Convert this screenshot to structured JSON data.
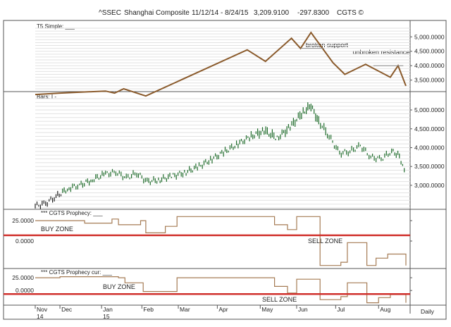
{
  "header": {
    "symbol": "^SSEC",
    "name": "Shanghai Composite",
    "range": "11/12/14 - 8/24/15",
    "last": "3,209.9100",
    "change": "-297.8300",
    "brand": "CGTS ©"
  },
  "colors": {
    "price_line": "#8a5a2b",
    "bars": "#1e6b2a",
    "prophecy": "#a57b54",
    "zone_line": "#d0312d"
  },
  "chart_data": [
    {
      "type": "line",
      "panel_label": "T5 Simple: ___",
      "x": [
        "11/12/14",
        "12/1/14",
        "1/5/15",
        "1/12/15",
        "1/19/15",
        "2/5/15",
        "4/24/15",
        "5/8/15",
        "5/28/15",
        "6/4/15",
        "6/12/15",
        "6/29/15",
        "7/8/15",
        "7/24/15",
        "8/12/15",
        "8/18/15",
        "8/24/15"
      ],
      "y": [
        3000,
        3050,
        3120,
        3050,
        3200,
        2950,
        4550,
        4150,
        4950,
        4600,
        5150,
        4100,
        3700,
        4050,
        3600,
        4000,
        3300
      ],
      "yticks": [
        "3,500.0000",
        "4,000.0000",
        "4,500.0000",
        "5,000.0000"
      ],
      "ylim": [
        3150,
        5300
      ],
      "annotations": [
        {
          "text": "broken support",
          "x": "6/8/15",
          "y": 4640
        },
        {
          "text": "unbroken resistance",
          "x": "7/14/15",
          "y": 4390
        }
      ]
    },
    {
      "type": "bar",
      "panel_label": "Bars: I -",
      "x": [
        "11/12/14",
        "11/20/14",
        "11/28/14",
        "12/8/14",
        "12/16/14",
        "12/26/14",
        "1/5/15",
        "1/13/15",
        "1/21/15",
        "1/29/15",
        "2/6/15",
        "2/16/15",
        "2/26/15",
        "3/8/15",
        "3/18/15",
        "3/28/15",
        "4/7/15",
        "4/17/15",
        "4/27/15",
        "5/7/15",
        "5/17/15",
        "5/27/15",
        "6/6/15",
        "6/12/15",
        "6/18/15",
        "6/26/15",
        "7/4/15",
        "7/12/15",
        "7/20/15",
        "7/28/15",
        "8/5/15",
        "8/13/15",
        "8/19/15",
        "8/24/15"
      ],
      "values": [
        2450,
        2520,
        2700,
        2930,
        3000,
        3150,
        3300,
        3350,
        3200,
        3320,
        3100,
        3150,
        3250,
        3350,
        3500,
        3700,
        3900,
        4100,
        4300,
        4450,
        4250,
        4550,
        4950,
        5100,
        4700,
        4300,
        3850,
        3900,
        4050,
        3750,
        3700,
        3900,
        3800,
        3210
      ],
      "yticks": [
        "3,000.0000",
        "3,500.0000",
        "4,000.0000",
        "4,500.0000",
        "5,000.0000"
      ],
      "ylim": [
        2400,
        5300
      ]
    },
    {
      "type": "line",
      "panel_label": "*** CGTS Prophecy: ___",
      "x": [
        "11/12/14",
        "12/5/14",
        "12/20/14",
        "1/10/15",
        "1/15/15",
        "2/1/15",
        "2/5/15",
        "2/20/15",
        "3/1/15",
        "5/1/15",
        "5/15/15",
        "5/25/15",
        "6/1/15",
        "6/15/15",
        "6/19/15",
        "7/5/15",
        "7/10/15",
        "7/20/15",
        "7/25/15",
        "8/1/15",
        "8/10/15",
        "8/24/15"
      ],
      "y": [
        25,
        25,
        22,
        27,
        20,
        25,
        10,
        18,
        30,
        30,
        20,
        14,
        30,
        30,
        -30,
        -26,
        -2,
        -2,
        -30,
        -21,
        -16,
        -30
      ],
      "yticks": [
        "0.0000",
        "25.0000"
      ],
      "ylim": [
        -32,
        32
      ],
      "zone_level": 7,
      "zone_labels": {
        "buy": "BUY ZONE",
        "sell": "SELL ZONE"
      }
    },
    {
      "type": "line",
      "panel_label": "*** CGTS Prophecy cur: ___",
      "x": [
        "11/12/14",
        "12/1/14",
        "12/20/14",
        "1/15/15",
        "1/20/15",
        "2/3/15",
        "2/8/15",
        "2/25/15",
        "3/1/15",
        "5/1/15",
        "5/15/15",
        "5/25/15",
        "6/1/15",
        "6/15/15",
        "6/19/15",
        "7/5/15",
        "7/10/15",
        "7/20/15",
        "7/25/15",
        "8/3/15",
        "8/12/15",
        "8/24/15"
      ],
      "y": [
        25,
        27,
        27,
        25,
        15,
        -2,
        -2,
        -2,
        25,
        25,
        8,
        -5,
        22,
        22,
        -18,
        -12,
        15,
        15,
        -24,
        -14,
        -8,
        -24
      ],
      "yticks": [
        "0.0000",
        "25.0000"
      ],
      "ylim": [
        -26,
        32
      ],
      "zone_level": -7,
      "zone_labels": {
        "buy": "BUY ZONE",
        "sell": "SELL ZONE"
      }
    }
  ],
  "x_axis": {
    "months": [
      {
        "label": "Nov",
        "date": "11/12/14",
        "year": "14"
      },
      {
        "label": "Dec",
        "date": "12/1/14",
        "year": ""
      },
      {
        "label": "Jan",
        "date": "1/2/15",
        "year": "15"
      },
      {
        "label": "Feb",
        "date": "2/2/15",
        "year": ""
      },
      {
        "label": "Mar",
        "date": "3/2/15",
        "year": ""
      },
      {
        "label": "Apr",
        "date": "4/1/15",
        "year": ""
      },
      {
        "label": "May",
        "date": "5/4/15",
        "year": ""
      },
      {
        "label": "Jun",
        "date": "6/1/15",
        "year": ""
      },
      {
        "label": "Jul",
        "date": "7/1/15",
        "year": ""
      },
      {
        "label": "Aug",
        "date": "8/3/15",
        "year": ""
      }
    ],
    "period": "Daily"
  }
}
